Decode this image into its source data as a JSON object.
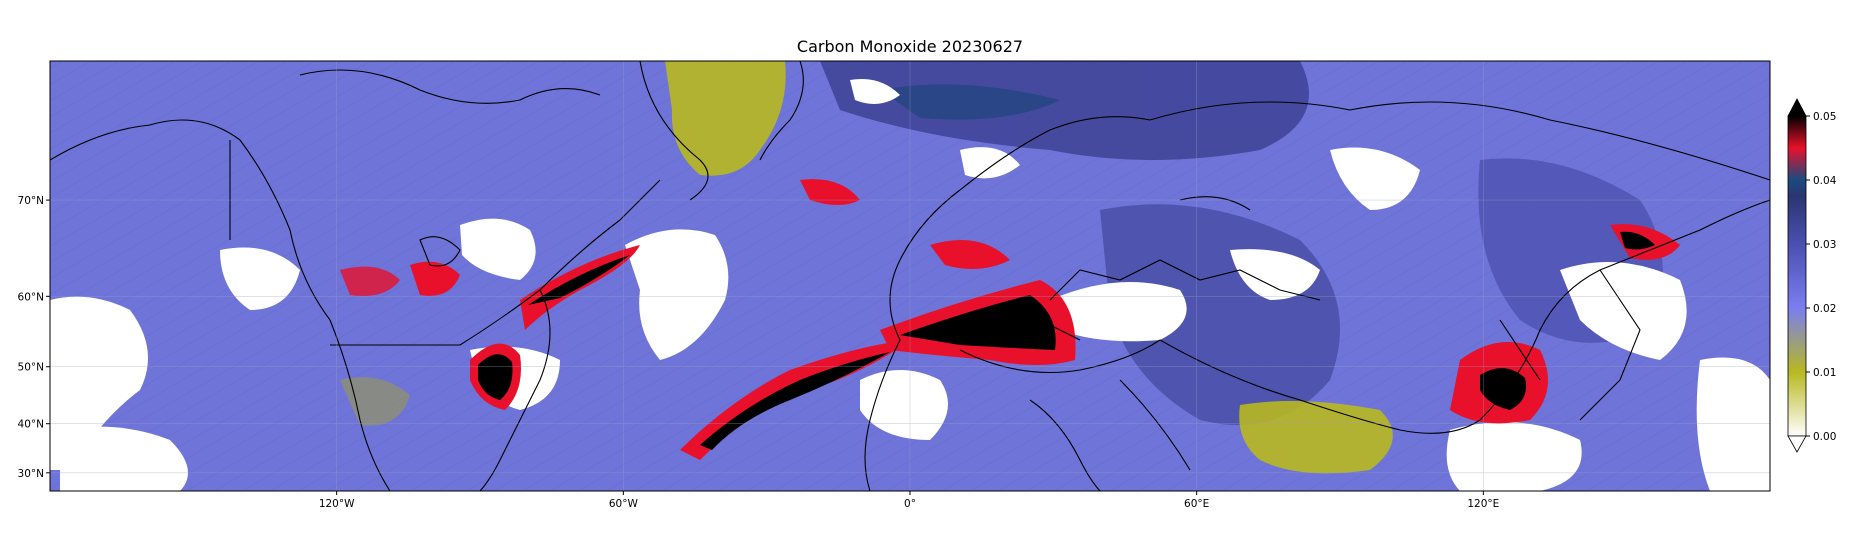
{
  "title": "Carbon Monoxide 20230627",
  "map": {
    "projection": "mercator",
    "lon_range": [
      -180,
      180
    ],
    "lat_range": [
      26,
      79
    ],
    "lon_ticks": [
      {
        "lon": -120,
        "label": "120°W"
      },
      {
        "lon": -60,
        "label": "60°W"
      },
      {
        "lon": 0,
        "label": "0°"
      },
      {
        "lon": 60,
        "label": "60°E"
      },
      {
        "lon": 120,
        "label": "120°E"
      }
    ],
    "lat_ticks": [
      {
        "lat": 70,
        "label": "70°N"
      },
      {
        "lat": 60,
        "label": "60°N"
      },
      {
        "lat": 50,
        "label": "50°N"
      },
      {
        "lat": 40,
        "label": "40°N"
      },
      {
        "lat": 30,
        "label": "30°N"
      }
    ],
    "background_color": "#6f74d8",
    "no_data_color": "#ffffff",
    "coastline_color": "#000000"
  },
  "colorbar": {
    "min": 0.0,
    "max": 0.05,
    "extend": "both",
    "ticks": [
      {
        "value": 0.0,
        "label": "0.00"
      },
      {
        "value": 0.01,
        "label": "0.01"
      },
      {
        "value": 0.02,
        "label": "0.02"
      },
      {
        "value": 0.03,
        "label": "0.03"
      },
      {
        "value": 0.04,
        "label": "0.04"
      },
      {
        "value": 0.05,
        "label": "0.05"
      }
    ],
    "colors": [
      "#ffffff",
      "#b8b820",
      "#7a7ef0",
      "#3a3f90",
      "#1a3a70",
      "#e8102a",
      "#000000"
    ]
  }
}
